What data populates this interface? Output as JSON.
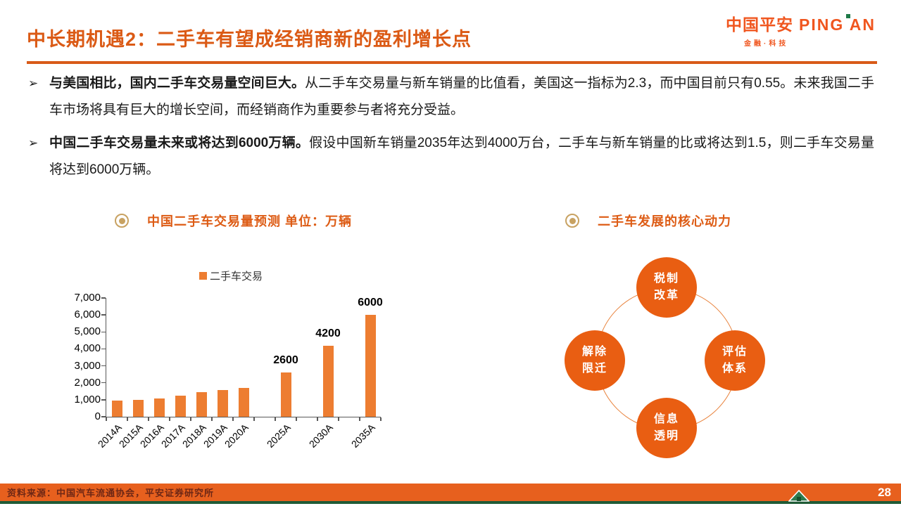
{
  "header": {
    "title": "中长期机遇2：二手车有望成经销商新的盈利增长点",
    "logo": {
      "cn": "中国平安",
      "en": "PING AN",
      "sub": "金融·科技"
    }
  },
  "bullets": [
    {
      "marker": "➢",
      "bold": "与美国相比，国内二手车交易量空间巨大。",
      "text": "从二手车交易量与新车销量的比值看，美国这一指标为2.3，而中国目前只有0.55。未来我国二手车市场将具有巨大的增长空间，而经销商作为重要参与者将充分受益。"
    },
    {
      "marker": "➢",
      "bold": "中国二手车交易量未来或将达到6000万辆。",
      "text": "假设中国新车销量2035年达到4000万台，二手车与新车销量的比或将达到1.5，则二手车交易量将达到6000万辆。"
    }
  ],
  "left_panel": {
    "title": "中国二手车交易量预测 单位：万辆",
    "legend": "二手车交易"
  },
  "right_panel": {
    "title": "二手车发展的核心动力",
    "circles": [
      {
        "position": "top",
        "lines": [
          "税制",
          "改革"
        ]
      },
      {
        "position": "right",
        "lines": [
          "评估",
          "体系"
        ]
      },
      {
        "position": "bottom",
        "lines": [
          "信息",
          "透明"
        ]
      },
      {
        "position": "left",
        "lines": [
          "解除",
          "限迁"
        ]
      }
    ]
  },
  "chart_data": {
    "type": "bar",
    "title": "中国二手车交易量预测",
    "unit": "万辆",
    "legend": [
      "二手车交易"
    ],
    "categories": [
      "2014A",
      "2015A",
      "2016A",
      "2017A",
      "2018A",
      "2019A",
      "2020A",
      "2025A",
      "2030A",
      "2035A"
    ],
    "values": [
      950,
      980,
      1060,
      1260,
      1430,
      1560,
      1690,
      2600,
      4200,
      6000
    ],
    "data_labels": [
      null,
      null,
      null,
      null,
      null,
      null,
      null,
      "2600",
      "4200",
      "6000"
    ],
    "slots": [
      0,
      1,
      2,
      3,
      4,
      5,
      6,
      8,
      10,
      12
    ],
    "total_slots": 13,
    "ylim": [
      0,
      7000
    ],
    "ytick_labels": [
      "7,000",
      "6,000",
      "5,000",
      "4,000",
      "3,000",
      "2,000",
      "1,000",
      "0"
    ],
    "bar_color": "#ED7D31",
    "grid": false,
    "legend_position": "top"
  },
  "footer": {
    "source": "资料来源：中国汽车流通协会，平安证券研究所",
    "page": "28"
  },
  "colors": {
    "title_orange": "#DB5A15",
    "bar_orange": "#ED7D31",
    "bubble_orange": "#E95E12",
    "footer_band": "#E7601E",
    "footer_green": "#1F5B36",
    "logo_orange": "#F0561F",
    "bullseye_tan": "#C8A262"
  }
}
